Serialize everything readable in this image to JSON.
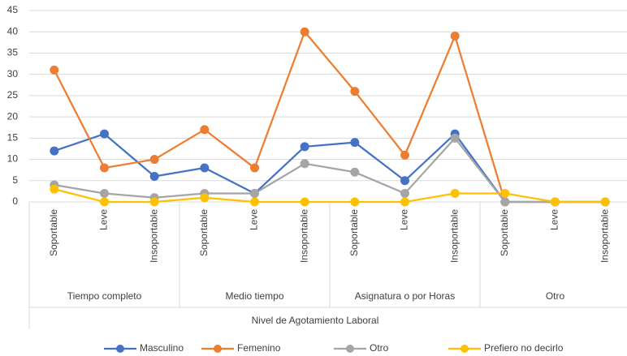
{
  "chart_data": {
    "type": "line",
    "categories": [
      "Soportable",
      "Leve",
      "Insoportable",
      "Soportable",
      "Leve",
      "Insoportable",
      "Soportable",
      "Leve",
      "Insoportable",
      "Soportable",
      "Leve",
      "Insoportable"
    ],
    "groups": [
      "Tiempo completo",
      "Medio tiempo",
      "Asignatura o por Horas",
      "Otro"
    ],
    "x_label": "Nivel de Agotamiento Laboral",
    "series": [
      {
        "name": "Masculino",
        "color": "#4472c4",
        "values": [
          12,
          16,
          6,
          8,
          2,
          13,
          14,
          5,
          16,
          0,
          0,
          0
        ]
      },
      {
        "name": "Femenino",
        "color": "#ed7d31",
        "values": [
          31,
          8,
          10,
          17,
          8,
          40,
          26,
          11,
          39,
          0,
          0,
          0
        ]
      },
      {
        "name": "Otro",
        "color": "#a5a5a5",
        "values": [
          4,
          2,
          1,
          2,
          2,
          9,
          7,
          2,
          15,
          0,
          0,
          0
        ]
      },
      {
        "name": "Prefiero no decirlo",
        "color": "#ffc000",
        "values": [
          3,
          0,
          0,
          1,
          0,
          0,
          0,
          0,
          2,
          2,
          0,
          0
        ]
      }
    ],
    "ylim": [
      0,
      45
    ],
    "yticks": [
      0,
      5,
      10,
      15,
      20,
      25,
      30,
      35,
      40,
      45
    ],
    "grid": true,
    "legend": "bottom"
  }
}
